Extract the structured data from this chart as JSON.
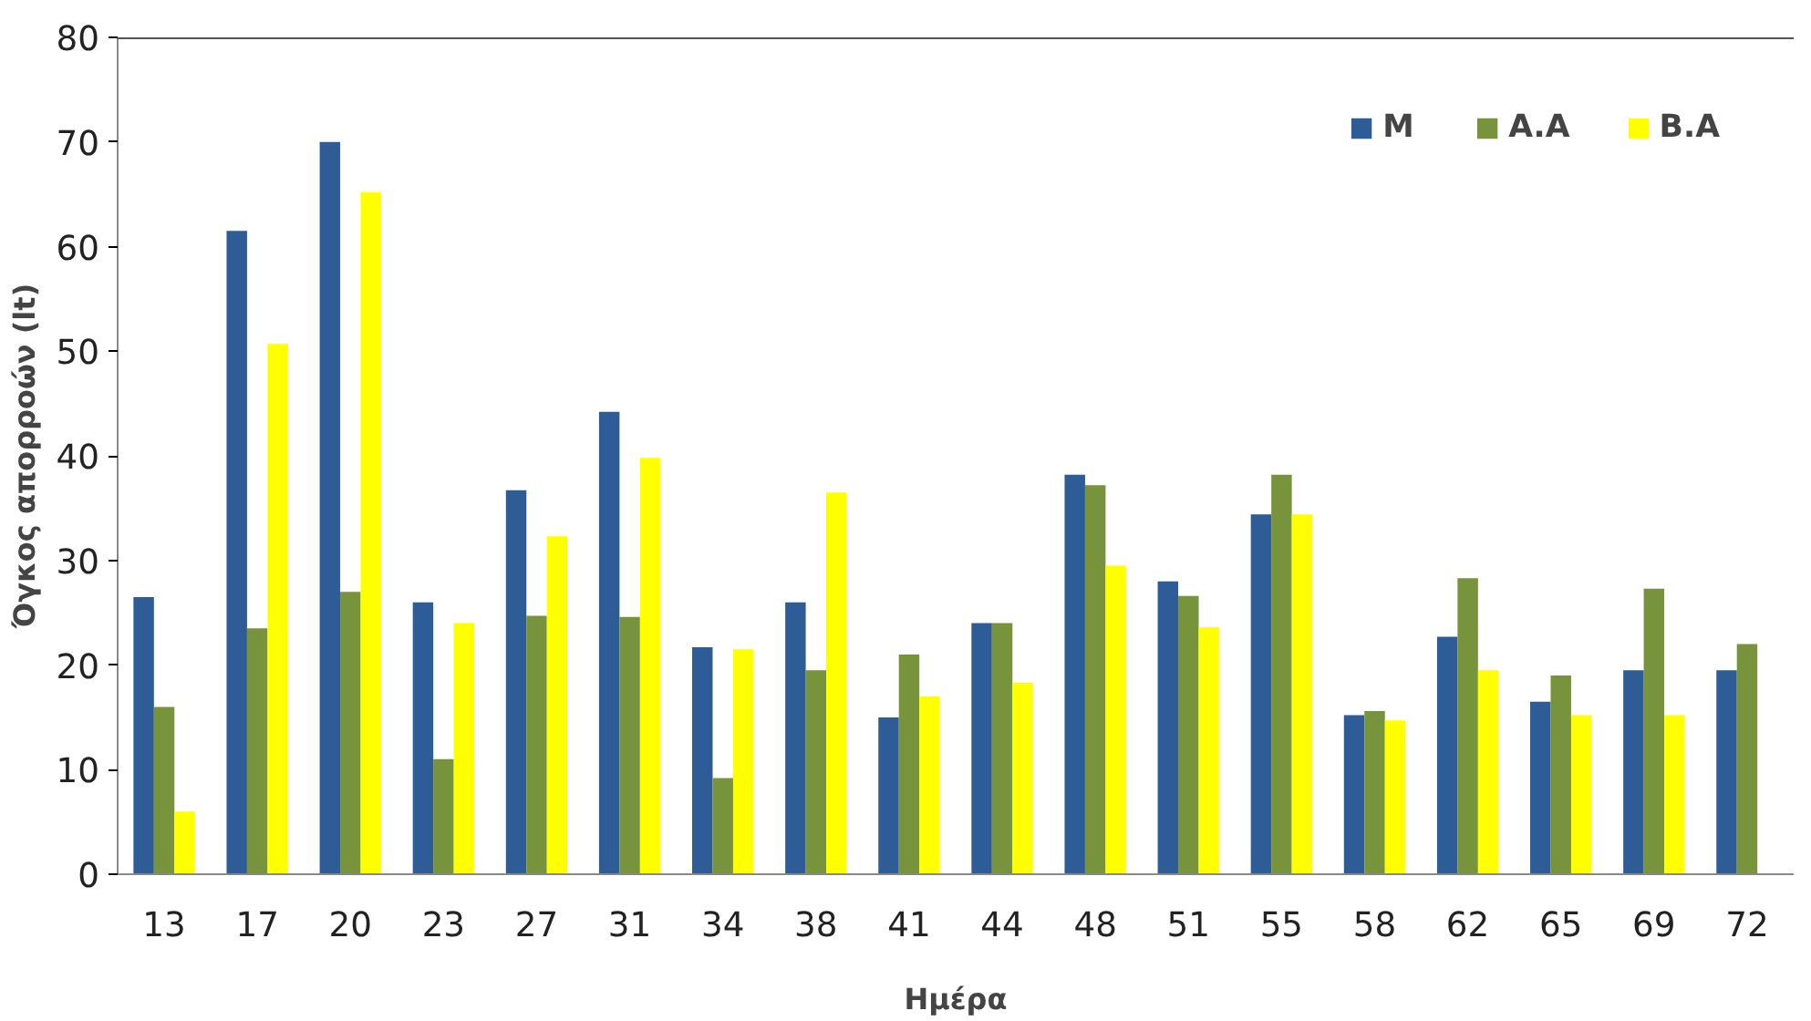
{
  "chart_data": {
    "type": "bar",
    "xlabel": "Ημέρα",
    "ylabel": "Όγκος απορροών (lt)",
    "categories": [
      "13",
      "17",
      "20",
      "23",
      "27",
      "31",
      "34",
      "38",
      "41",
      "44",
      "48",
      "51",
      "55",
      "58",
      "62",
      "65",
      "69",
      "72"
    ],
    "series": [
      {
        "name": "M",
        "color": "#2e5c96",
        "values": [
          26.5,
          61.5,
          70,
          26,
          36.7,
          44.2,
          21.7,
          26,
          15,
          24,
          38.2,
          28,
          34.4,
          15.2,
          22.7,
          16.5,
          19.5,
          19.5
        ]
      },
      {
        "name": "A.A",
        "color": "#77933c",
        "values": [
          16,
          23.5,
          27,
          11,
          24.7,
          24.6,
          9.2,
          19.5,
          21,
          24,
          37.2,
          26.6,
          38.2,
          15.6,
          28.3,
          19,
          27.3,
          22
        ]
      },
      {
        "name": "B.A",
        "color": "#ffff00",
        "values": [
          6,
          50.7,
          65.2,
          24,
          32.3,
          39.8,
          21.5,
          36.5,
          17,
          18.3,
          29.5,
          23.6,
          34.4,
          14.7,
          19.5,
          15.2,
          15.2,
          null
        ]
      }
    ],
    "ylim": [
      0,
      80
    ],
    "yticks": [
      0,
      10,
      20,
      30,
      40,
      50,
      60,
      70,
      80
    ],
    "grid": false,
    "legend": "top right"
  }
}
